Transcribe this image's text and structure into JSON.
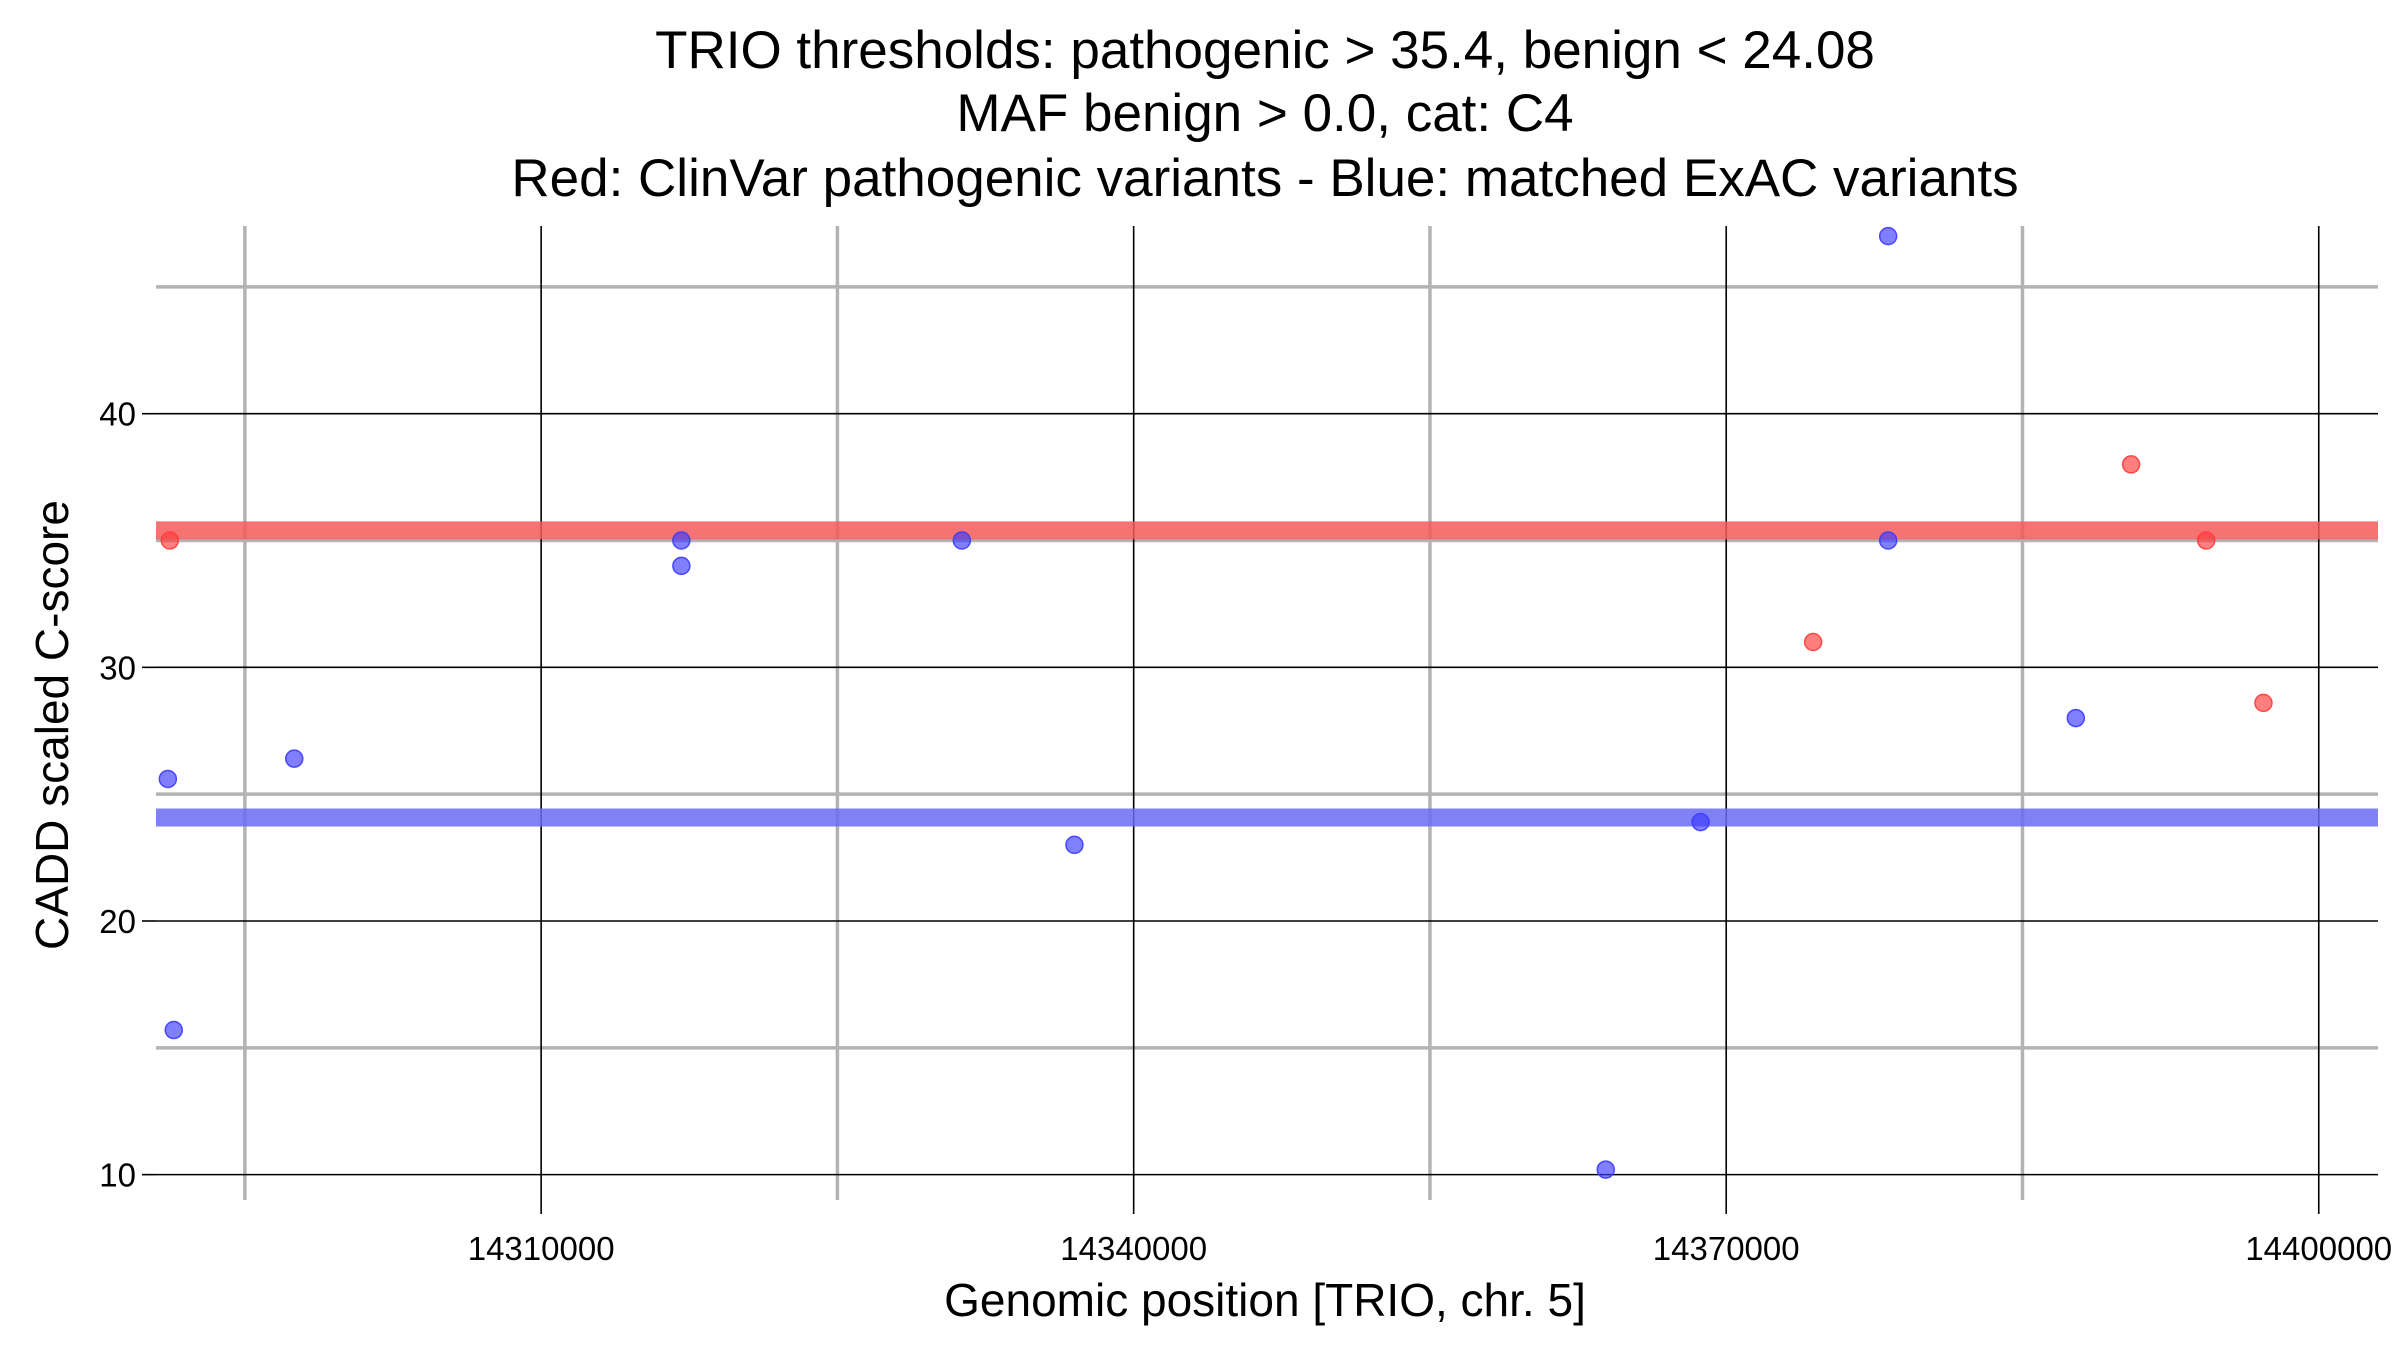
{
  "chart_data": {
    "type": "scatter",
    "title_lines": [
      "TRIO thresholds: pathogenic > 35.4, benign < 24.08",
      "MAF benign > 0.0, cat: C4",
      "Red: ClinVar pathogenic variants - Blue: matched ExAC variants"
    ],
    "xlabel": "Genomic position [TRIO, chr. 5]",
    "ylabel": "CADD scaled C-score",
    "xlim": [
      14290500,
      14403000
    ],
    "ylim": [
      9,
      47.4
    ],
    "x_major_ticks": [
      14310000,
      14340000,
      14370000,
      14400000
    ],
    "x_tick_labels": [
      "14310000",
      "14340000",
      "14370000",
      "14400000"
    ],
    "x_minor_ticks": [
      14295000,
      14325000,
      14355000,
      14385000
    ],
    "y_major_ticks": [
      10,
      20,
      30,
      40
    ],
    "y_tick_labels": [
      "10",
      "20",
      "30",
      "40"
    ],
    "y_minor_ticks": [
      15,
      25,
      35,
      45
    ],
    "thresholds": [
      {
        "name": "pathogenic",
        "value": 35.4,
        "color": "#f45b5b"
      },
      {
        "name": "benign",
        "value": 24.08,
        "color": "#6b6bf5"
      }
    ],
    "series": [
      {
        "name": "ClinVar pathogenic variants",
        "color": "#ff3b3b",
        "points": [
          {
            "x": 14291200,
            "y": 35.0
          },
          {
            "x": 14374400,
            "y": 31.0
          },
          {
            "x": 14390500,
            "y": 38.0
          },
          {
            "x": 14394300,
            "y": 35.0
          },
          {
            "x": 14397200,
            "y": 28.6
          }
        ]
      },
      {
        "name": "matched ExAC variants",
        "color": "#3b3bff",
        "points": [
          {
            "x": 14291100,
            "y": 25.6
          },
          {
            "x": 14291400,
            "y": 15.7
          },
          {
            "x": 14297500,
            "y": 26.4
          },
          {
            "x": 14317100,
            "y": 35.0
          },
          {
            "x": 14317100,
            "y": 34.0
          },
          {
            "x": 14331300,
            "y": 35.0
          },
          {
            "x": 14337000,
            "y": 23.0
          },
          {
            "x": 14363900,
            "y": 10.2
          },
          {
            "x": 14368700,
            "y": 23.9
          },
          {
            "x": 14378200,
            "y": 47.0
          },
          {
            "x": 14378200,
            "y": 35.0
          },
          {
            "x": 14387700,
            "y": 28.0
          }
        ]
      }
    ]
  }
}
